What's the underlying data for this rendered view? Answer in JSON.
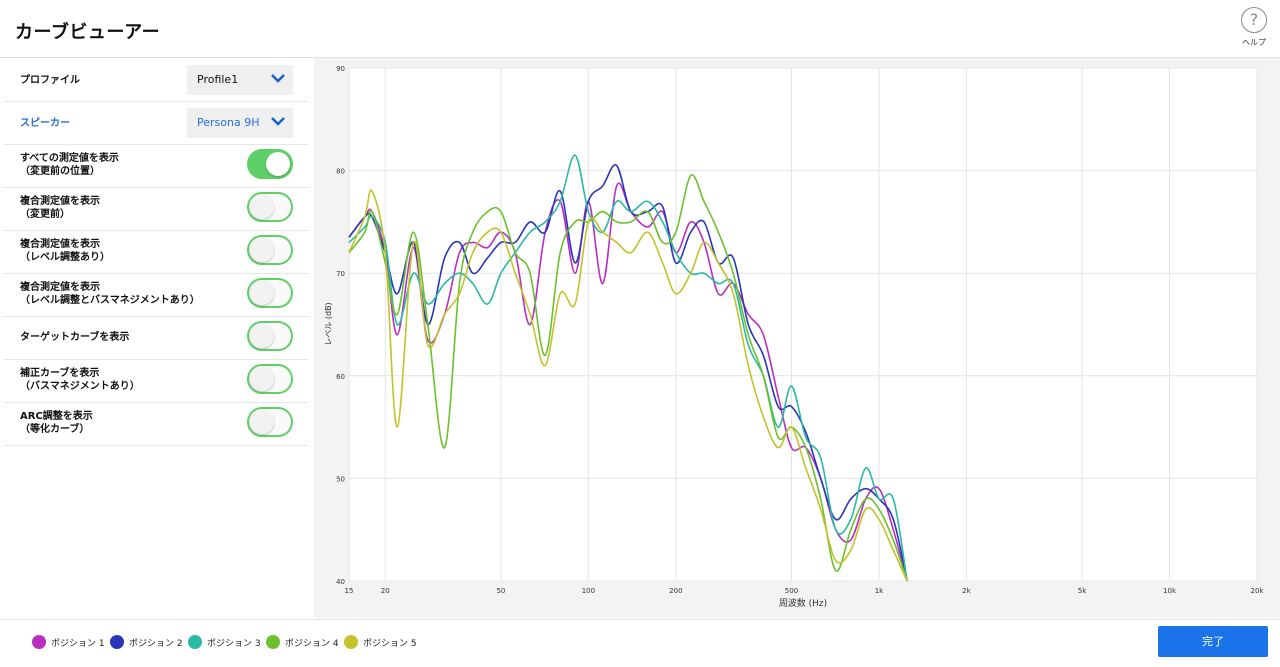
{
  "header": {
    "title": "カーブビューアー",
    "help_label": "ヘルプ"
  },
  "sidebar": {
    "profile": {
      "label": "プロファイル",
      "value": "Profile1"
    },
    "speaker": {
      "label": "スピーカー",
      "value": "Persona 9H"
    },
    "toggles": [
      {
        "line1": "すべての測定値を表示",
        "line2": "（変更前の位置）",
        "on": true
      },
      {
        "line1": "複合測定値を表示",
        "line2": "（変更前）",
        "on": false
      },
      {
        "line1": "複合測定値を表示",
        "line2": "（レベル調整あり）",
        "on": false
      },
      {
        "line1": "複合測定値を表示",
        "line2": "（レベル調整とバスマネジメントあり）",
        "on": false
      },
      {
        "line1": "ターゲットカーブを表示",
        "line2": "",
        "on": false
      },
      {
        "line1": "補正カーブを表示",
        "line2": "（バスマネジメントあり）",
        "on": false
      },
      {
        "line1": "ARC調整を表示",
        "line2": "（等化カーブ）",
        "on": false
      }
    ]
  },
  "footer": {
    "done_label": "完了"
  },
  "chart_data": {
    "type": "line",
    "xlabel": "周波数 (Hz)",
    "ylabel": "レベル (dB)",
    "x_scale": "log",
    "xlim": [
      15,
      20000
    ],
    "ylim": [
      40,
      90
    ],
    "x_ticks": [
      15,
      20,
      50,
      100,
      200,
      500,
      1000,
      2000,
      5000,
      10000,
      20000
    ],
    "x_tick_labels": [
      "15",
      "20",
      "50",
      "100",
      "200",
      "500",
      "1k",
      "2k",
      "5k",
      "10k",
      "20k"
    ],
    "y_ticks": [
      40,
      50,
      60,
      70,
      80,
      90
    ],
    "grid": true,
    "legend_position": "bottom-left",
    "x": [
      15,
      17,
      18,
      20,
      22,
      25,
      28,
      32,
      36,
      40,
      45,
      50,
      56,
      63,
      71,
      80,
      90,
      100,
      112,
      125,
      140,
      160,
      180,
      200,
      225,
      250,
      280,
      315,
      355,
      400,
      450,
      500,
      560,
      630,
      710,
      800,
      900,
      1000,
      1120,
      1250
    ],
    "series": [
      {
        "name": "ポジション 1",
        "color": "#b82fc2",
        "values": [
          73.5,
          75.5,
          76,
          72,
          64,
          72.5,
          63.5,
          66,
          72,
          73,
          72.5,
          74,
          72,
          65,
          74,
          77,
          70,
          77,
          69,
          78.5,
          76,
          74.5,
          76,
          72,
          75,
          73,
          68,
          69,
          66,
          64,
          58,
          53,
          53,
          50,
          45,
          44,
          48,
          49,
          45,
          40
        ]
      },
      {
        "name": "ポジション 2",
        "color": "#2a35b8",
        "values": [
          73.5,
          75.5,
          75.5,
          72,
          68,
          73,
          65,
          71.5,
          73,
          70,
          71.5,
          73,
          73,
          75,
          74,
          78,
          71,
          77,
          78.5,
          80.5,
          76,
          76,
          76.5,
          71,
          74,
          75,
          71,
          71.5,
          65,
          62,
          57,
          57,
          54.5,
          50,
          46,
          48,
          49,
          48,
          46,
          40
        ]
      },
      {
        "name": "ポジション 3",
        "color": "#2ab9a4",
        "values": [
          73,
          74.5,
          75.5,
          73,
          65,
          70,
          67,
          69,
          70,
          69,
          67,
          70,
          72,
          74,
          75,
          77,
          81.5,
          76,
          74,
          77,
          76,
          77,
          75,
          72,
          70,
          70,
          69,
          69,
          63,
          60,
          55,
          59,
          54,
          52,
          45,
          46,
          51,
          48,
          48,
          40
        ]
      },
      {
        "name": "ポジション 4",
        "color": "#6ac12c",
        "values": [
          72,
          74,
          76,
          71,
          66,
          74,
          65,
          53,
          69,
          74,
          76,
          76,
          72,
          70,
          62,
          72,
          75,
          75,
          76,
          75,
          75,
          76,
          73,
          74,
          79.5,
          77,
          74,
          70,
          64,
          60,
          54,
          55,
          53,
          48,
          41,
          45,
          48,
          47,
          44,
          40
        ]
      },
      {
        "name": "ポジション 5",
        "color": "#c3c22a",
        "values": [
          72,
          75.5,
          78,
          72,
          55,
          73,
          63,
          66,
          68,
          72,
          74,
          74,
          70,
          66,
          61,
          68,
          67,
          75,
          74,
          73,
          72,
          74,
          71,
          68,
          70,
          73,
          71,
          68,
          61,
          56,
          53,
          55,
          51,
          47,
          42,
          43,
          47,
          46,
          43,
          40
        ]
      }
    ]
  }
}
